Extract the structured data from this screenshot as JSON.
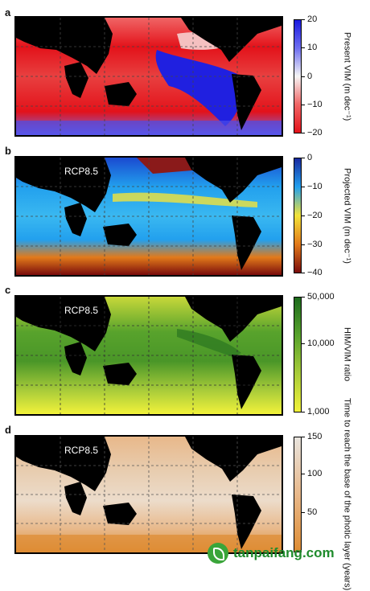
{
  "panels": [
    {
      "letter": "a",
      "scenario": "",
      "colorbar_label": "Present VIM (m dec⁻¹)",
      "ticks": [
        "20",
        "10",
        "0",
        "−10",
        "−20"
      ],
      "colors": [
        "#1a1adf",
        "#6f6ff0",
        "#f5f5f5",
        "#f06565",
        "#e3121a"
      ]
    },
    {
      "letter": "b",
      "scenario": "RCP8.5",
      "colorbar_label": "Projected VIM (m dec⁻¹)",
      "ticks": [
        "0",
        "−10",
        "−20",
        "−30",
        "−40"
      ],
      "colors": [
        "#1a2aa0",
        "#22a0ee",
        "#f2e33a",
        "#e27a1a",
        "#7a0c0c"
      ]
    },
    {
      "letter": "c",
      "scenario": "RCP8.5",
      "colorbar_label": "HIM/VIM ratio",
      "ticks": [
        "50,000",
        "10,000",
        "1,000"
      ],
      "colors": [
        "#1d6a1d",
        "#58a32c",
        "#a9cc3a",
        "#f2f23a"
      ]
    },
    {
      "letter": "d",
      "scenario": "RCP8.5",
      "colorbar_label": "Time to reach the base of the photic layer (years)",
      "ticks": [
        "150",
        "100",
        "50"
      ],
      "colors": [
        "#e8e4de",
        "#e8b88a",
        "#de8c33"
      ]
    }
  ],
  "watermark": {
    "text": "tanpaifang.com"
  }
}
